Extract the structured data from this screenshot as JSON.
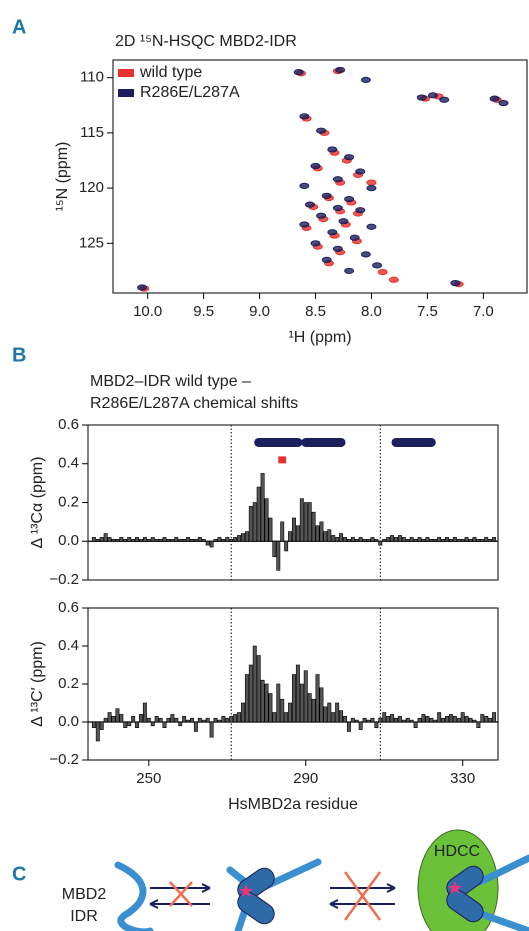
{
  "panels": [
    "A",
    "B",
    "C"
  ],
  "chart_data": [
    {
      "type": "scatter",
      "title": "2D ¹⁵N-HSQC MBD2-IDR",
      "x_label": "¹H (ppm)",
      "y_label": "¹⁵N (ppm)",
      "legend": "upper left",
      "xlim": [
        10.31,
        6.61
      ],
      "ylim": [
        129.5,
        108.4
      ],
      "xticks": [
        {
          "value": 10,
          "label": "10.0"
        },
        9.5,
        {
          "value": 9,
          "label": "9.0"
        },
        8.5,
        {
          "value": 8,
          "label": "8.0"
        },
        7.5,
        {
          "value": 7,
          "label": "7.0"
        }
      ],
      "yticks": [
        110,
        115,
        120,
        125
      ],
      "series": [
        {
          "name": "wild type",
          "color": "#e8312a",
          "x": [
            8.63,
            8.3,
            7.52,
            7.4,
            6.88,
            8.58,
            8.42,
            8.33,
            8.22,
            8.48,
            8.12,
            8.28,
            8.0,
            8.38,
            8.18,
            8.52,
            8.28,
            8.12,
            8.43,
            8.23,
            8.58,
            8.33,
            8.13,
            8.48,
            8.28,
            8.38,
            7.9,
            7.8,
            7.22,
            10.03
          ],
          "y": [
            109.6,
            109.4,
            111.9,
            111.7,
            112.0,
            113.7,
            115.0,
            116.8,
            117.5,
            118.2,
            118.8,
            119.5,
            119.5,
            120.9,
            121.3,
            121.7,
            122.1,
            122.3,
            122.8,
            123.3,
            123.6,
            124.3,
            124.8,
            125.3,
            125.8,
            126.8,
            127.6,
            128.3,
            128.7,
            129.1
          ]
        },
        {
          "name": "R286E/L287A",
          "color": "#1b1f5e",
          "x": [
            8.65,
            8.28,
            8.05,
            7.55,
            7.45,
            7.35,
            6.9,
            6.82,
            8.6,
            8.45,
            8.35,
            8.2,
            8.5,
            8.1,
            8.3,
            8.6,
            8.0,
            8.4,
            8.2,
            8.55,
            8.3,
            8.1,
            8.45,
            8.25,
            8.6,
            8.0,
            8.35,
            8.15,
            8.5,
            8.3,
            8.05,
            8.4,
            7.95,
            8.2,
            7.25,
            10.05
          ],
          "y": [
            109.5,
            109.3,
            110.2,
            111.8,
            111.6,
            112.0,
            111.9,
            112.3,
            113.5,
            114.8,
            116.5,
            117.2,
            118.0,
            118.5,
            119.2,
            119.8,
            120.0,
            120.7,
            121.0,
            121.5,
            121.8,
            122.0,
            122.5,
            123.0,
            123.3,
            123.5,
            124.0,
            124.5,
            125.0,
            125.5,
            126.0,
            126.5,
            127.0,
            127.5,
            128.6,
            129.0
          ]
        }
      ]
    },
    {
      "type": "bar",
      "title": "MBD2–IDR wild type –",
      "subtitle": "R286E/L287A chemical shifts",
      "y_label": "Δ ¹³Cα (ppm)",
      "color": "#555555",
      "xlim": [
        234.5,
        339
      ],
      "ylim": [
        -0.2,
        0.6
      ],
      "yticks": [
        {
          "value": -0.2,
          "label": "−0.2"
        },
        {
          "value": 0,
          "label": "0.0"
        },
        0.2,
        0.4,
        0.6
      ],
      "vlines": [
        271,
        309
      ],
      "ranges": [
        {
          "color": "#1b1f5e",
          "y": 0.51,
          "spans": [
            [
              278,
              288
            ],
            [
              290,
              299
            ],
            [
              313,
              322
            ]
          ]
        },
        {
          "color": "#e8312a",
          "y": 0.42,
          "spans": [
            [
              283,
              285
            ]
          ]
        }
      ],
      "x": [
        236,
        237,
        238,
        239,
        240,
        241,
        242,
        243,
        244,
        245,
        246,
        247,
        248,
        249,
        250,
        251,
        252,
        253,
        254,
        255,
        256,
        257,
        258,
        259,
        260,
        261,
        262,
        263,
        264,
        265,
        266,
        267,
        268,
        269,
        270,
        271,
        272,
        273,
        274,
        275,
        276,
        277,
        278,
        279,
        280,
        281,
        282,
        283,
        284,
        285,
        286,
        287,
        288,
        289,
        290,
        291,
        292,
        293,
        294,
        295,
        296,
        297,
        298,
        299,
        300,
        301,
        302,
        303,
        304,
        305,
        306,
        307,
        308,
        309,
        310,
        311,
        312,
        313,
        314,
        315,
        316,
        317,
        318,
        319,
        320,
        321,
        322,
        323,
        324,
        325,
        326,
        327,
        328,
        329,
        330,
        331,
        332,
        333,
        334,
        335,
        336,
        337,
        338
      ],
      "values": [
        0.02,
        0.01,
        0.02,
        0.04,
        0.02,
        0.01,
        0.01,
        0.02,
        0.01,
        0.02,
        0.01,
        0.02,
        0.01,
        0.02,
        0.01,
        0.02,
        0.01,
        0.01,
        0.02,
        0.01,
        0.01,
        0.02,
        0.01,
        0.01,
        0.02,
        0.01,
        0.01,
        0.02,
        0.01,
        -0.02,
        -0.03,
        0.01,
        0.02,
        0.01,
        0.02,
        0.01,
        0.02,
        0.03,
        0.04,
        0.05,
        0.18,
        0.2,
        0.28,
        0.35,
        0.22,
        0.12,
        -0.08,
        -0.15,
        0.1,
        -0.05,
        0.05,
        0.12,
        0.08,
        0.22,
        0.2,
        0.2,
        0.15,
        0.08,
        0.1,
        0.05,
        0.06,
        0.03,
        0.02,
        0.04,
        0.02,
        0.01,
        0.02,
        0.01,
        0.02,
        0.01,
        0.01,
        0.02,
        0.01,
        -0.02,
        0.01,
        0.02,
        0.03,
        0.02,
        0.03,
        0.02,
        0.01,
        0.02,
        0.01,
        0.02,
        0.01,
        0.02,
        0.01,
        0.01,
        0.02,
        0.01,
        0.02,
        0.01,
        0.02,
        0.01,
        0.01,
        0.02,
        0.01,
        0.02,
        0.01,
        0.01,
        0.02,
        0.01,
        0.02
      ]
    },
    {
      "type": "bar",
      "x_label": "HsMBD2a residue",
      "y_label": "Δ ¹³C′ (ppm)",
      "color": "#555555",
      "xlim": [
        234.5,
        339
      ],
      "ylim": [
        -0.2,
        0.6
      ],
      "xticks": [
        250,
        290,
        330
      ],
      "yticks": [
        {
          "value": -0.2,
          "label": "−0.2"
        },
        {
          "value": 0,
          "label": "0.0"
        },
        0.2,
        0.4,
        0.6
      ],
      "vlines": [
        271,
        309
      ],
      "x": [
        236,
        237,
        238,
        239,
        240,
        241,
        242,
        243,
        244,
        245,
        246,
        247,
        248,
        249,
        250,
        251,
        252,
        253,
        254,
        255,
        256,
        257,
        258,
        259,
        260,
        261,
        262,
        263,
        264,
        265,
        266,
        267,
        268,
        269,
        270,
        271,
        272,
        273,
        274,
        275,
        276,
        277,
        278,
        279,
        280,
        281,
        282,
        283,
        284,
        285,
        286,
        287,
        288,
        289,
        290,
        291,
        292,
        293,
        294,
        295,
        296,
        297,
        298,
        299,
        300,
        301,
        302,
        303,
        304,
        305,
        306,
        307,
        308,
        309,
        310,
        311,
        312,
        313,
        314,
        315,
        316,
        317,
        318,
        319,
        320,
        321,
        322,
        323,
        324,
        325,
        326,
        327,
        328,
        329,
        330,
        331,
        332,
        333,
        334,
        335,
        336,
        337,
        338
      ],
      "values": [
        -0.03,
        -0.1,
        -0.04,
        0.02,
        0.05,
        0.03,
        0.07,
        0.04,
        -0.03,
        -0.02,
        0.03,
        -0.03,
        0.04,
        0.1,
        0.02,
        -0.02,
        0.03,
        0.02,
        -0.03,
        0.02,
        0.04,
        0.02,
        -0.02,
        0.03,
        0.01,
        0.02,
        -0.05,
        0.02,
        0.01,
        0.02,
        -0.08,
        0.02,
        0.01,
        0.03,
        0.02,
        0.03,
        0.04,
        0.05,
        0.1,
        0.25,
        0.3,
        0.4,
        0.35,
        0.22,
        0.2,
        0.15,
        0.05,
        0.2,
        0.12,
        0.05,
        0.1,
        0.25,
        0.3,
        0.2,
        0.27,
        0.15,
        0.12,
        0.25,
        0.18,
        0.08,
        0.1,
        0.05,
        0.1,
        0.06,
        0.03,
        -0.05,
        0.02,
        0.01,
        -0.04,
        0.02,
        0.01,
        0.02,
        -0.03,
        0.02,
        0.05,
        0.03,
        0.04,
        0.02,
        0.03,
        0.01,
        0.02,
        0.01,
        -0.03,
        0.02,
        0.04,
        0.03,
        0.02,
        0.01,
        0.05,
        0.02,
        0.03,
        0.04,
        0.03,
        0.02,
        0.05,
        0.03,
        0.02,
        0.01,
        -0.03,
        0.04,
        0.03,
        0.02,
        0.05
      ]
    }
  ],
  "diagram": {
    "labels": [
      "MBD2",
      "IDR",
      "HDCC"
    ]
  }
}
